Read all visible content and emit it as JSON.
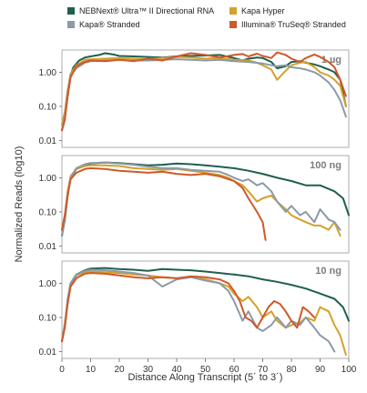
{
  "chart_data": {
    "type": "line",
    "ylabel": "Normalized Reads (log10)",
    "xlabel": "Distance Along Transcript (5´ to 3´)",
    "xlim": [
      0,
      100
    ],
    "xticks": [
      "0",
      "10",
      "20",
      "30",
      "40",
      "50",
      "60",
      "70",
      "80",
      "90",
      "100"
    ],
    "ylim_log10": [
      -2.2,
      0.65
    ],
    "yticks": [
      "1.00",
      "0.10",
      "0.01"
    ],
    "legend": [
      {
        "name": "NEBNext® Ultra™ II Directional RNA",
        "color": "#1f5f4f"
      },
      {
        "name": "Kapa Hyper",
        "color": "#d4a12a"
      },
      {
        "name": "Kapa® Stranded",
        "color": "#8a9aa8"
      },
      {
        "name": "Illumina® TruSeq® Stranded",
        "color": "#d0582a"
      }
    ],
    "colors": {
      "nebnext": "#1f5f4f",
      "kapa_hyper": "#d4a12a",
      "kapa_stranded": "#8a9aa8",
      "illumina": "#d0582a"
    },
    "panels": [
      {
        "label": "1 µg",
        "series": [
          {
            "key": "nebnext",
            "x": [
              0,
              1,
              2,
              3,
              4,
              6,
              8,
              10,
              13,
              15,
              18,
              20,
              25,
              30,
              35,
              40,
              45,
              50,
              55,
              60,
              63,
              65,
              68,
              70,
              73,
              75,
              78,
              80,
              83,
              85,
              88,
              90,
              93,
              95,
              97,
              99
            ],
            "y": [
              0.02,
              0.05,
              0.2,
              0.8,
              1.4,
              2.2,
              2.7,
              2.9,
              3.2,
              3.6,
              3.3,
              3.0,
              2.9,
              2.8,
              2.7,
              2.9,
              3.0,
              3.1,
              3.2,
              2.6,
              2.2,
              2.5,
              2.7,
              2.6,
              2.0,
              1.3,
              1.5,
              2.0,
              2.1,
              1.9,
              1.7,
              1.5,
              1.2,
              1.0,
              0.6,
              0.1
            ]
          },
          {
            "key": "kapa_hyper",
            "x": [
              0,
              1,
              2,
              3,
              5,
              8,
              10,
              15,
              20,
              25,
              30,
              35,
              40,
              45,
              50,
              55,
              60,
              65,
              68,
              70,
              73,
              75,
              78,
              80,
              83,
              85,
              88,
              90,
              93,
              95,
              97,
              99
            ],
            "y": [
              0.03,
              0.07,
              0.3,
              0.9,
              1.6,
              2.3,
              2.4,
              2.5,
              2.6,
              2.5,
              2.4,
              2.6,
              2.8,
              2.7,
              2.5,
              2.6,
              2.3,
              2.2,
              1.9,
              1.6,
              1.2,
              0.6,
              1.1,
              1.6,
              1.9,
              2.0,
              1.4,
              1.0,
              0.8,
              0.6,
              0.4,
              0.1
            ]
          },
          {
            "key": "kapa_stranded",
            "x": [
              0,
              1,
              2,
              3,
              5,
              8,
              10,
              15,
              20,
              25,
              30,
              35,
              40,
              45,
              50,
              55,
              60,
              65,
              70,
              73,
              75,
              78,
              80,
              83,
              85,
              88,
              90,
              93,
              95,
              97,
              99
            ],
            "y": [
              0.02,
              0.05,
              0.25,
              0.8,
              1.3,
              1.9,
              2.1,
              2.2,
              2.3,
              2.2,
              2.2,
              2.3,
              2.4,
              2.3,
              2.2,
              2.3,
              2.1,
              2.0,
              1.8,
              1.6,
              1.5,
              1.6,
              1.4,
              1.3,
              1.2,
              1.0,
              0.8,
              0.5,
              0.3,
              0.15,
              0.05
            ]
          },
          {
            "key": "illumina",
            "x": [
              0,
              1,
              2,
              3,
              5,
              8,
              10,
              15,
              20,
              25,
              30,
              35,
              40,
              45,
              50,
              55,
              60,
              63,
              65,
              68,
              70,
              73,
              75,
              78,
              80,
              83,
              85,
              88,
              90,
              93,
              95,
              97,
              99
            ],
            "y": [
              0.02,
              0.04,
              0.2,
              0.7,
              1.5,
              2.0,
              2.2,
              2.1,
              2.3,
              2.1,
              2.5,
              2.2,
              2.9,
              3.6,
              3.2,
              2.7,
              3.2,
              3.4,
              2.9,
              3.5,
              3.0,
              2.6,
              3.8,
              3.2,
              2.5,
              2.0,
              2.6,
              3.3,
              2.8,
              2.0,
              1.4,
              0.6,
              0.2
            ]
          }
        ]
      },
      {
        "label": "100 ng",
        "series": [
          {
            "key": "nebnext",
            "x": [
              0,
              1,
              2,
              3,
              5,
              8,
              10,
              15,
              20,
              25,
              30,
              35,
              40,
              45,
              50,
              55,
              60,
              65,
              70,
              75,
              80,
              85,
              90,
              95,
              98,
              100
            ],
            "y": [
              0.02,
              0.06,
              0.3,
              1.0,
              1.8,
              2.3,
              2.6,
              2.8,
              2.7,
              2.5,
              2.3,
              2.4,
              2.6,
              2.5,
              2.3,
              2.1,
              1.9,
              1.6,
              1.3,
              1.0,
              0.8,
              0.6,
              0.6,
              0.4,
              0.25,
              0.08
            ]
          },
          {
            "key": "kapa_hyper",
            "x": [
              0,
              1,
              2,
              3,
              5,
              8,
              10,
              15,
              20,
              25,
              30,
              35,
              40,
              45,
              50,
              55,
              58,
              60,
              63,
              65,
              68,
              70,
              73,
              75,
              78,
              80,
              83,
              85,
              88,
              90,
              93,
              95,
              97
            ],
            "y": [
              0.03,
              0.08,
              0.4,
              1.1,
              1.8,
              2.2,
              2.3,
              2.3,
              2.2,
              1.9,
              1.8,
              1.7,
              1.8,
              1.6,
              1.4,
              1.2,
              1.0,
              0.8,
              0.6,
              0.4,
              0.2,
              0.25,
              0.3,
              0.2,
              0.12,
              0.08,
              0.06,
              0.05,
              0.04,
              0.04,
              0.03,
              0.05,
              0.02
            ]
          },
          {
            "key": "kapa_stranded",
            "x": [
              0,
              1,
              2,
              3,
              5,
              8,
              10,
              15,
              20,
              25,
              30,
              35,
              40,
              45,
              50,
              55,
              58,
              60,
              63,
              65,
              68,
              70,
              73,
              75,
              78,
              80,
              83,
              85,
              88,
              90,
              93,
              95,
              97
            ],
            "y": [
              0.02,
              0.07,
              0.35,
              1.0,
              1.9,
              2.5,
              2.7,
              2.8,
              2.6,
              2.4,
              2.1,
              1.9,
              1.9,
              1.7,
              1.6,
              1.5,
              1.2,
              1.0,
              0.8,
              0.9,
              0.6,
              0.7,
              0.4,
              0.2,
              0.1,
              0.15,
              0.08,
              0.1,
              0.05,
              0.12,
              0.06,
              0.05,
              0.03
            ]
          },
          {
            "key": "illumina",
            "x": [
              0,
              1,
              2,
              3,
              5,
              8,
              10,
              15,
              20,
              25,
              30,
              35,
              40,
              45,
              50,
              55,
              60,
              63,
              65,
              68,
              70,
              71
            ],
            "y": [
              0.03,
              0.08,
              0.3,
              0.9,
              1.4,
              1.8,
              1.9,
              1.8,
              1.6,
              1.5,
              1.4,
              1.5,
              1.3,
              1.2,
              1.3,
              1.1,
              0.8,
              0.5,
              0.25,
              0.1,
              0.05,
              0.015
            ]
          }
        ]
      },
      {
        "label": "10 ng",
        "series": [
          {
            "key": "nebnext",
            "x": [
              0,
              1,
              2,
              3,
              5,
              8,
              10,
              15,
              20,
              25,
              30,
              35,
              40,
              45,
              50,
              55,
              60,
              65,
              70,
              75,
              80,
              85,
              90,
              95,
              98,
              100
            ],
            "y": [
              0.02,
              0.06,
              0.3,
              1.0,
              1.8,
              2.4,
              2.7,
              2.8,
              2.6,
              2.5,
              2.3,
              2.6,
              2.5,
              2.4,
              2.2,
              2.0,
              1.8,
              1.6,
              1.3,
              1.1,
              0.9,
              0.7,
              0.5,
              0.35,
              0.2,
              0.08
            ]
          },
          {
            "key": "kapa_hyper",
            "x": [
              0,
              1,
              2,
              3,
              5,
              8,
              10,
              15,
              20,
              25,
              30,
              35,
              40,
              45,
              50,
              55,
              58,
              60,
              63,
              65,
              68,
              70,
              73,
              75,
              78,
              80,
              83,
              85,
              88,
              90,
              93,
              95,
              97,
              99
            ],
            "y": [
              0.02,
              0.07,
              0.3,
              0.9,
              1.7,
              2.1,
              2.2,
              2.1,
              2.0,
              1.8,
              1.7,
              1.5,
              1.4,
              1.5,
              1.3,
              1.0,
              0.8,
              0.5,
              0.3,
              0.4,
              0.2,
              0.1,
              0.15,
              0.08,
              0.05,
              0.06,
              0.07,
              0.1,
              0.08,
              0.2,
              0.15,
              0.06,
              0.03,
              0.008
            ]
          },
          {
            "key": "kapa_stranded",
            "x": [
              0,
              1,
              2,
              3,
              5,
              8,
              10,
              15,
              20,
              25,
              30,
              35,
              40,
              45,
              50,
              55,
              58,
              60,
              63,
              65,
              68,
              70,
              73,
              75,
              78,
              80,
              83,
              85,
              88,
              90,
              93,
              95
            ],
            "y": [
              0.02,
              0.06,
              0.35,
              1.0,
              1.8,
              2.3,
              2.5,
              2.4,
              2.2,
              2.0,
              1.7,
              0.8,
              1.3,
              1.5,
              1.2,
              1.0,
              0.6,
              0.3,
              0.08,
              0.15,
              0.05,
              0.04,
              0.06,
              0.1,
              0.05,
              0.08,
              0.06,
              0.1,
              0.05,
              0.03,
              0.02,
              0.01
            ]
          },
          {
            "key": "illumina",
            "x": [
              0,
              1,
              2,
              3,
              5,
              8,
              10,
              15,
              20,
              25,
              30,
              35,
              40,
              45,
              50,
              55,
              58,
              60,
              62,
              64,
              66,
              68,
              70,
              72,
              74,
              76,
              78,
              80,
              82,
              84,
              86,
              88
            ],
            "y": [
              0.02,
              0.05,
              0.25,
              0.8,
              1.4,
              1.9,
              2.0,
              1.9,
              1.7,
              1.5,
              1.4,
              1.5,
              1.4,
              1.6,
              1.5,
              1.3,
              1.0,
              0.6,
              0.3,
              0.1,
              0.08,
              0.05,
              0.1,
              0.2,
              0.3,
              0.25,
              0.15,
              0.08,
              0.05,
              0.2,
              0.15,
              0.1
            ]
          }
        ]
      }
    ]
  }
}
